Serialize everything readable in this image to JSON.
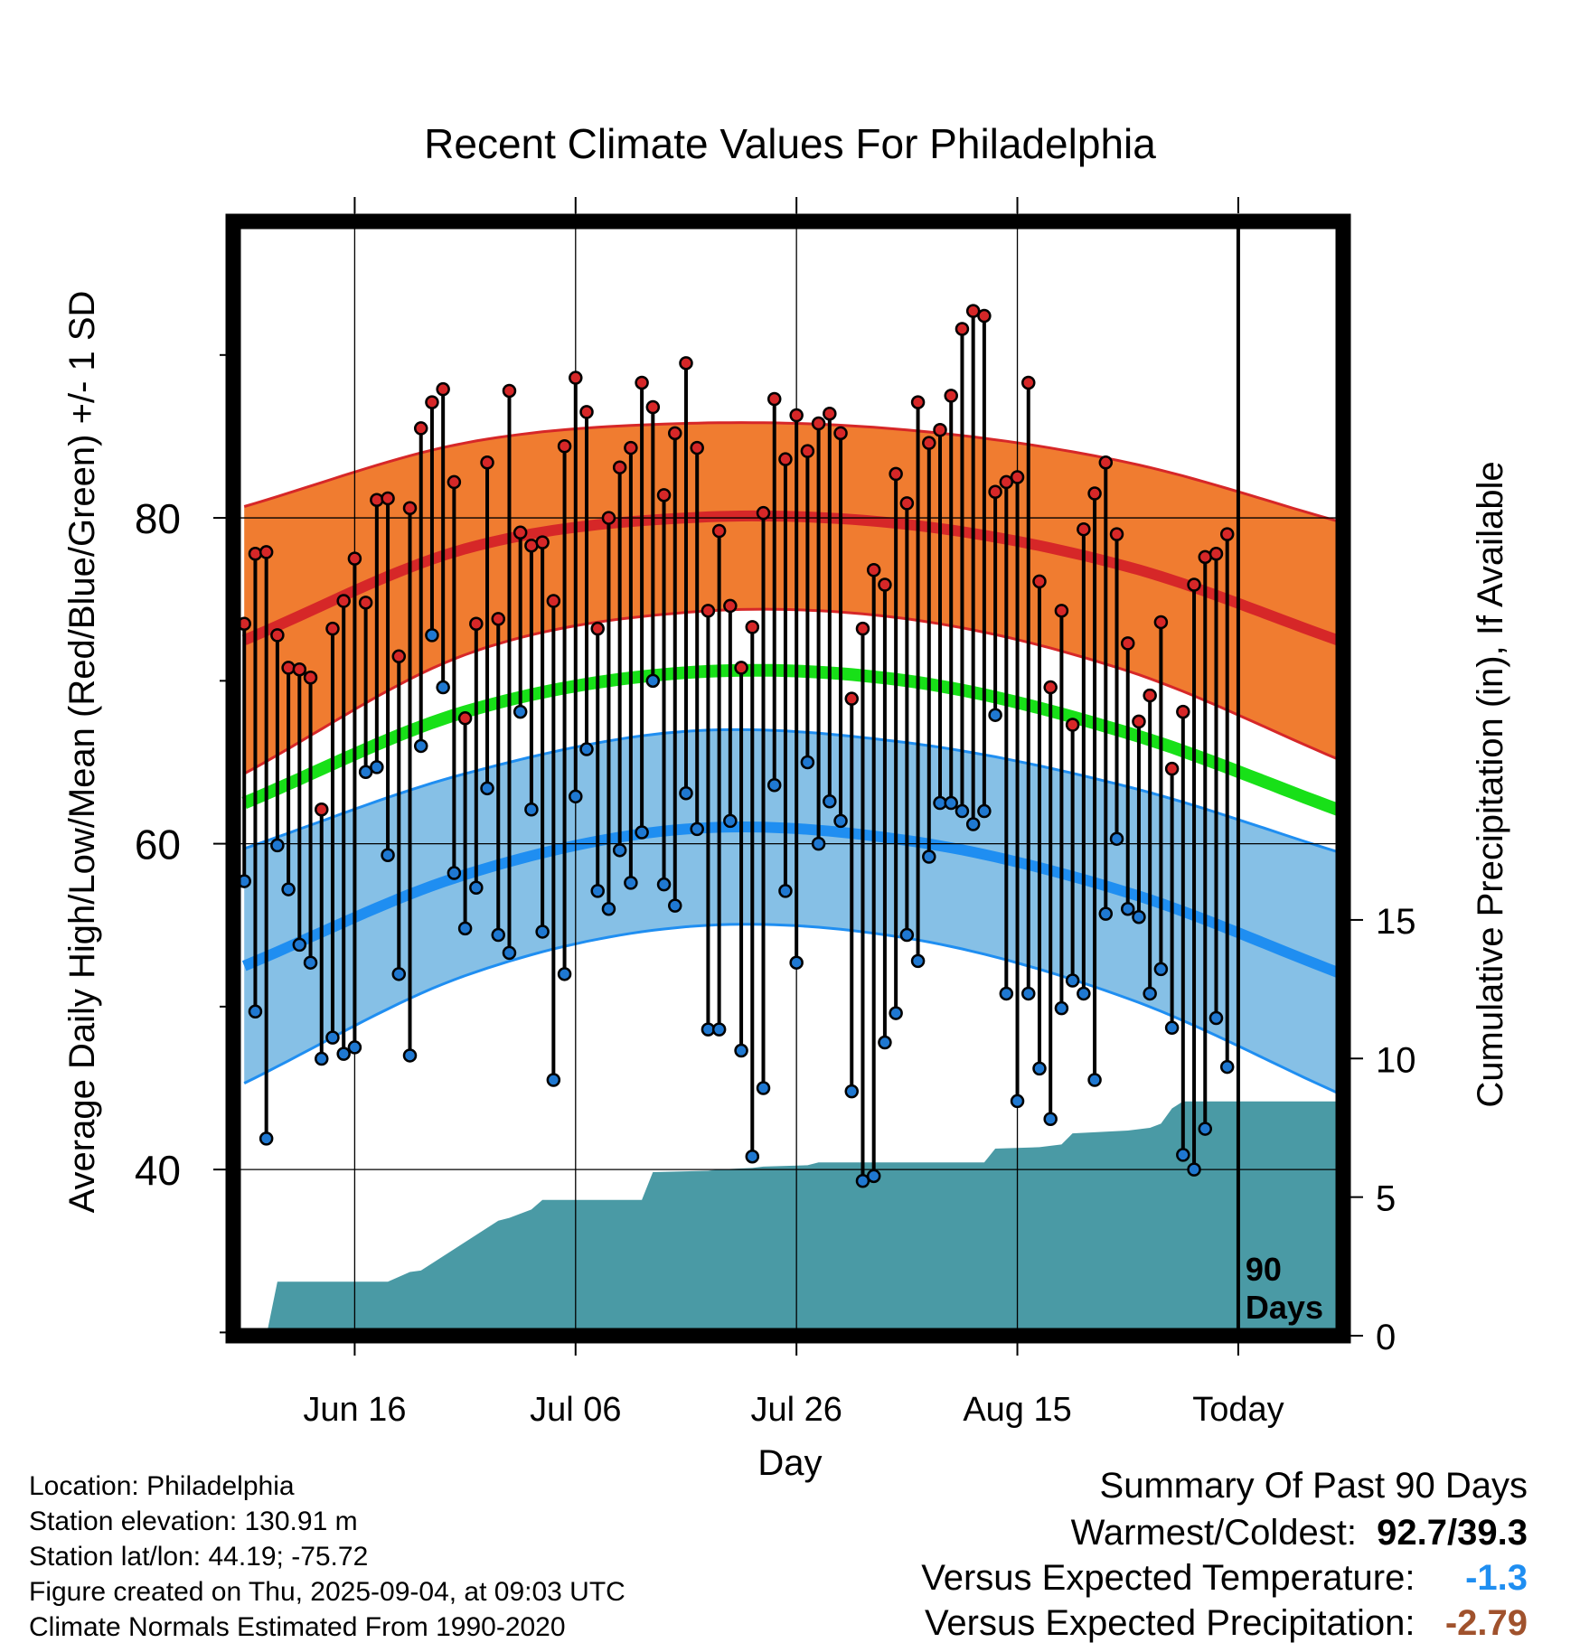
{
  "chart_data": {
    "type": "line",
    "title": "Recent Climate Values For Philadelphia",
    "xlabel": "Day",
    "ylabel": "Average Daily High/Low/Mean (Red/Blue/Green) +/- 1 SD",
    "y2label": "Cumulative Precipitation (in), If Available",
    "x_tick_labels": [
      "Jun 16",
      "Jul 06",
      "Jul 26",
      "Aug 15",
      "Today"
    ],
    "x_tick_days": [
      10,
      30,
      50,
      70,
      90
    ],
    "y_ticks": [
      40,
      60,
      80
    ],
    "y2_ticks": [
      0,
      5,
      10,
      15
    ],
    "ylim": [
      29.8,
      98.2
    ],
    "xlim": [
      -1,
      99.5
    ],
    "y2lim": [
      0,
      40.2
    ],
    "grid": true,
    "today_marker_label_1": "90",
    "today_marker_label_2": "Days",
    "normals": {
      "day": [
        0,
        20,
        40,
        60,
        80,
        99
      ],
      "high_mean": [
        72.5,
        78.1,
        80.0,
        79.6,
        77.0,
        72.5
      ],
      "high_sd": [
        8.2,
        6.5,
        5.8,
        5.8,
        6.4,
        7.3
      ],
      "low_mean": [
        52.5,
        58.1,
        60.9,
        60.2,
        57.0,
        52.1
      ],
      "low_sd": [
        7.2,
        6.2,
        6.0,
        6.0,
        6.5,
        7.4
      ],
      "mean_temp": [
        62.5,
        68.1,
        70.5,
        70.0,
        66.8,
        62.1
      ]
    },
    "series": [
      {
        "name": "Daily High",
        "color": "#d62728",
        "values": [
          73.5,
          77.8,
          77.9,
          72.8,
          70.8,
          70.7,
          70.2,
          62.1,
          73.2,
          74.9,
          77.5,
          74.8,
          81.1,
          81.2,
          71.5,
          80.6,
          85.5,
          87.1,
          87.9,
          82.2,
          67.7,
          73.5,
          83.4,
          73.8,
          87.8,
          79.1,
          78.3,
          78.5,
          74.9,
          84.4,
          88.6,
          86.5,
          73.2,
          80.0,
          83.1,
          84.3,
          88.3,
          86.8,
          81.4,
          85.2,
          89.5,
          84.3,
          74.3,
          79.2,
          74.6,
          70.8,
          73.3,
          80.3,
          87.3,
          83.6,
          86.3,
          84.1,
          85.8,
          86.4,
          85.2,
          68.9,
          73.2,
          76.8,
          75.9,
          82.7,
          80.9,
          87.1,
          84.6,
          85.4,
          87.5,
          91.6,
          92.7,
          92.4,
          81.6,
          82.2,
          82.5,
          88.3,
          76.1,
          69.6,
          74.3,
          67.3,
          79.3,
          81.5,
          83.4,
          79.0,
          72.3,
          67.5,
          69.1,
          73.6,
          64.6,
          68.1,
          75.9,
          77.6,
          77.8,
          79.0
        ]
      },
      {
        "name": "Daily Low",
        "color": "#1f78d1",
        "values": [
          57.7,
          49.7,
          41.9,
          59.9,
          57.2,
          53.8,
          52.7,
          46.8,
          48.1,
          47.1,
          47.5,
          64.4,
          64.7,
          59.3,
          52.0,
          47.0,
          66.0,
          72.8,
          69.6,
          58.2,
          54.8,
          57.3,
          63.4,
          54.4,
          53.3,
          68.1,
          62.1,
          54.6,
          45.5,
          52.0,
          62.9,
          65.8,
          57.1,
          56.0,
          59.6,
          57.6,
          60.7,
          70.0,
          57.5,
          56.2,
          63.1,
          60.9,
          48.6,
          48.6,
          61.4,
          47.3,
          40.8,
          45.0,
          63.6,
          57.1,
          52.7,
          65.0,
          60.0,
          62.6,
          61.4,
          44.8,
          39.3,
          39.6,
          47.8,
          49.6,
          54.4,
          52.8,
          59.2,
          62.5,
          62.5,
          62.0,
          61.2,
          62.0,
          67.9,
          50.8,
          44.2,
          50.8,
          46.2,
          43.1,
          49.9,
          51.6,
          50.8,
          45.5,
          55.7,
          60.3,
          56.0,
          55.5,
          50.8,
          52.3,
          48.7,
          40.9,
          40.0,
          42.5,
          49.3,
          46.3
        ]
      }
    ],
    "precip_cumulative": {
      "x": [
        0,
        2,
        3,
        12,
        13,
        15,
        16,
        23,
        24,
        26,
        27,
        36,
        37,
        42,
        43,
        46,
        47,
        51,
        52,
        67,
        68,
        72,
        73,
        74,
        75,
        80,
        81,
        82,
        83,
        84,
        85,
        99
      ],
      "y": [
        0,
        0,
        1.95,
        1.95,
        1.95,
        2.3,
        2.35,
        4.15,
        4.25,
        4.55,
        4.9,
        4.9,
        5.9,
        5.95,
        6.0,
        6.05,
        6.1,
        6.15,
        6.25,
        6.25,
        6.75,
        6.8,
        6.85,
        6.9,
        7.3,
        7.4,
        7.45,
        7.5,
        7.65,
        8.2,
        8.45,
        8.45
      ]
    }
  },
  "info": {
    "location": "Location: Philadelphia",
    "elevation": "Station elevation: 130.91 m",
    "latlon": "Station lat/lon: 44.19; -75.72",
    "created": "Figure created on Thu, 2025-09-04, at 09:03 UTC",
    "normals": "Climate Normals Estimated From 1990-2020"
  },
  "summary": {
    "title": "Summary Of Past 90 Days",
    "warmest_label": "Warmest/Coldest:",
    "warmest_value": "92.7/39.3",
    "temp_label": "Versus Expected Temperature:",
    "temp_value": "-1.3",
    "temp_color": "#1f8ef1",
    "precip_label": "Versus Expected Precipitation:",
    "precip_value": "-2.79",
    "precip_color": "#a0522d"
  }
}
